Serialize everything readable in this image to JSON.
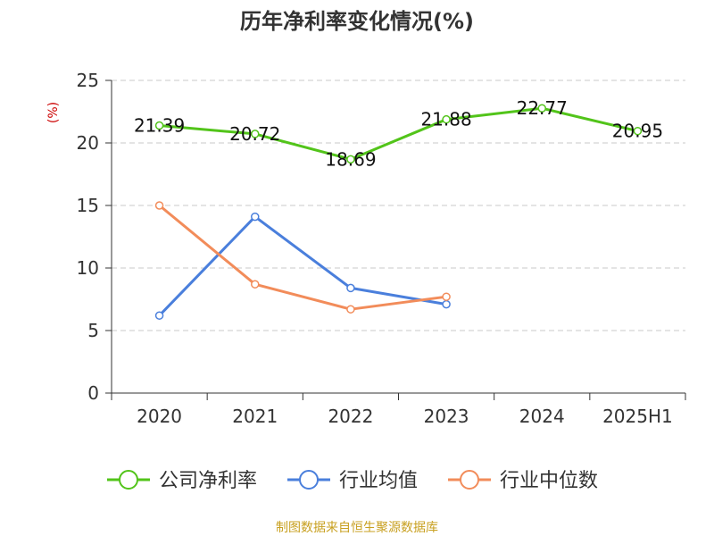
{
  "chart_data": {
    "type": "line",
    "title": "历年净利率变化情况(%)",
    "ylabel": "(%)",
    "categories": [
      "2020",
      "2021",
      "2022",
      "2023",
      "2024",
      "2025H1"
    ],
    "ylim": [
      0,
      25
    ],
    "yticks": [
      0,
      5,
      10,
      15,
      20,
      25
    ],
    "grid": true,
    "legend": "bottom",
    "series": [
      {
        "name": "公司净利率",
        "color": "#52c41a",
        "values": [
          21.39,
          20.72,
          18.69,
          21.88,
          22.77,
          20.95
        ],
        "labels": [
          "21.39",
          "20.72",
          "18.69",
          "21.88",
          "22.77",
          "20.95"
        ]
      },
      {
        "name": "行业均值",
        "color": "#4a7fdc",
        "values": [
          6.2,
          14.1,
          8.4,
          7.1,
          null,
          null
        ]
      },
      {
        "name": "行业中位数",
        "color": "#f28c5a",
        "values": [
          15.0,
          8.7,
          6.7,
          7.7,
          null,
          null
        ]
      }
    ]
  },
  "source": "制图数据来自恒生聚源数据库"
}
